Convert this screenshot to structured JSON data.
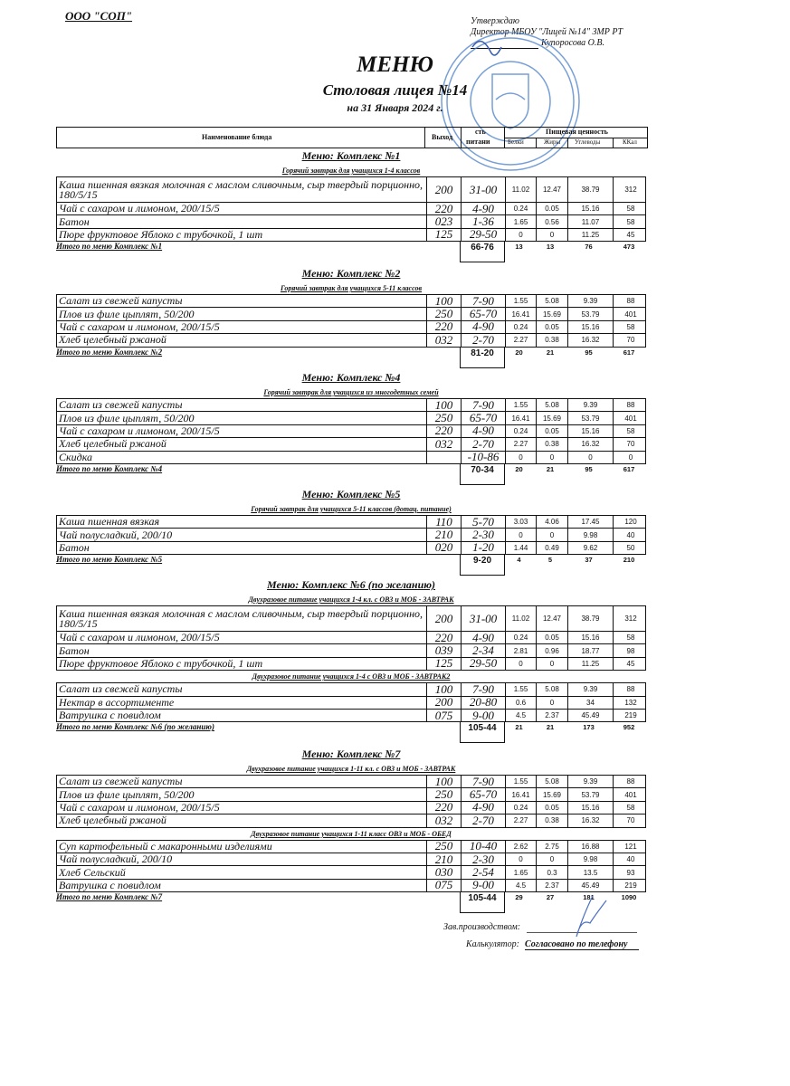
{
  "organization": "ООО \"СОП\"",
  "approval": {
    "line1": "Утверждаю",
    "line2": "Директор МБОУ \"Лицей №14\" ЗМР РТ",
    "line3": "Купоросова О.В."
  },
  "title": "МЕНЮ",
  "subtitle": "Столовая лицея №14",
  "date": "на 31 Января 2024 г.",
  "stamp_color": "#4a7fc8",
  "table_header": {
    "name": "Наименование блюда",
    "weight": "Выход",
    "price_top": "сть",
    "price_bottom": "питани",
    "nutrition": "Пищевая ценность",
    "protein": "Белки",
    "fat": "Жиры",
    "carbs": "Углеводы",
    "kcal": "ККал"
  },
  "sections": [
    {
      "title": "Меню: Комплекс №1",
      "groups": [
        {
          "title": "Горячий завтрак для учащихся 1-4 классов",
          "rows": [
            {
              "name": "Каша пшенная вязкая молочная с маслом сливочным, сыр твердый порционно, 180/5/15",
              "weight": "200",
              "price": "31-00",
              "protein": "11.02",
              "fat": "12.47",
              "carbs": "38.79",
              "kcal": "312"
            },
            {
              "name": "Чай с сахаром и лимоном, 200/15/5",
              "weight": "220",
              "price": "4-90",
              "protein": "0.24",
              "fat": "0.05",
              "carbs": "15.16",
              "kcal": "58"
            },
            {
              "name": "Батон",
              "weight": "023",
              "price": "1-36",
              "protein": "1.65",
              "fat": "0.56",
              "carbs": "11.07",
              "kcal": "58"
            },
            {
              "name": "Пюре фруктовое Яблоко с трубочкой, 1 шт",
              "weight": "125",
              "price": "29-50",
              "protein": "0",
              "fat": "0",
              "carbs": "11.25",
              "kcal": "45"
            }
          ]
        }
      ],
      "total": {
        "label": "Итого по меню Комплекс №1",
        "price": "66-76",
        "protein": "13",
        "fat": "13",
        "carbs": "76",
        "kcal": "473"
      }
    },
    {
      "title": "Меню: Комплекс №2",
      "groups": [
        {
          "title": "Горячий завтрак для учащихся 5-11 классов",
          "rows": [
            {
              "name": "Салат из свежей капусты",
              "weight": "100",
              "price": "7-90",
              "protein": "1.55",
              "fat": "5.08",
              "carbs": "9.39",
              "kcal": "88"
            },
            {
              "name": "Плов из филе цыплят, 50/200",
              "weight": "250",
              "price": "65-70",
              "protein": "16.41",
              "fat": "15.69",
              "carbs": "53.79",
              "kcal": "401"
            },
            {
              "name": "Чай с сахаром и лимоном, 200/15/5",
              "weight": "220",
              "price": "4-90",
              "protein": "0.24",
              "fat": "0.05",
              "carbs": "15.16",
              "kcal": "58"
            },
            {
              "name": "Хлеб  целебный ржаной",
              "weight": "032",
              "price": "2-70",
              "protein": "2.27",
              "fat": "0.38",
              "carbs": "16.32",
              "kcal": "70"
            }
          ]
        }
      ],
      "total": {
        "label": "Итого по меню Комплекс №2",
        "price": "81-20",
        "protein": "20",
        "fat": "21",
        "carbs": "95",
        "kcal": "617"
      }
    },
    {
      "title": "Меню: Комплекс №4",
      "groups": [
        {
          "title": "Горячий завтрак для учащихся из многодетных семей",
          "rows": [
            {
              "name": "Салат из свежей капусты",
              "weight": "100",
              "price": "7-90",
              "protein": "1.55",
              "fat": "5.08",
              "carbs": "9.39",
              "kcal": "88"
            },
            {
              "name": "Плов из филе цыплят, 50/200",
              "weight": "250",
              "price": "65-70",
              "protein": "16.41",
              "fat": "15.69",
              "carbs": "53.79",
              "kcal": "401"
            },
            {
              "name": "Чай с сахаром и лимоном, 200/15/5",
              "weight": "220",
              "price": "4-90",
              "protein": "0.24",
              "fat": "0.05",
              "carbs": "15.16",
              "kcal": "58"
            },
            {
              "name": "Хлеб  целебный ржаной",
              "weight": "032",
              "price": "2-70",
              "protein": "2.27",
              "fat": "0.38",
              "carbs": "16.32",
              "kcal": "70"
            },
            {
              "name": "Скидка",
              "weight": "",
              "price": "-10-86",
              "protein": "0",
              "fat": "0",
              "carbs": "0",
              "kcal": "0"
            }
          ]
        }
      ],
      "total": {
        "label": "Итого по меню Комплекс №4",
        "price": "70-34",
        "protein": "20",
        "fat": "21",
        "carbs": "95",
        "kcal": "617"
      }
    },
    {
      "title": "Меню: Комплекс №5",
      "groups": [
        {
          "title": "Горячий завтрак для учащихся 5-11 классов (дотац. питание)",
          "rows": [
            {
              "name": "Каша пшенная вязкая",
              "weight": "110",
              "price": "5-70",
              "protein": "3.03",
              "fat": "4.06",
              "carbs": "17.45",
              "kcal": "120"
            },
            {
              "name": "Чай полусладкий, 200/10",
              "weight": "210",
              "price": "2-30",
              "protein": "0",
              "fat": "0",
              "carbs": "9.98",
              "kcal": "40"
            },
            {
              "name": "Батон",
              "weight": "020",
              "price": "1-20",
              "protein": "1.44",
              "fat": "0.49",
              "carbs": "9.62",
              "kcal": "50"
            }
          ]
        }
      ],
      "total": {
        "label": "Итого по меню Комплекс №5",
        "price": "9-20",
        "protein": "4",
        "fat": "5",
        "carbs": "37",
        "kcal": "210"
      }
    },
    {
      "title": "Меню: Комплекс №6 (по желанию)",
      "groups": [
        {
          "title": "Двухразовое питание учащихся 1-4 кл. с ОВЗ и МОБ - ЗАВТРАК",
          "rows": [
            {
              "name": "Каша пшенная вязкая молочная с маслом сливочным, сыр твердый порционно, 180/5/15",
              "weight": "200",
              "price": "31-00",
              "protein": "11.02",
              "fat": "12.47",
              "carbs": "38.79",
              "kcal": "312"
            },
            {
              "name": "Чай с сахаром и лимоном, 200/15/5",
              "weight": "220",
              "price": "4-90",
              "protein": "0.24",
              "fat": "0.05",
              "carbs": "15.16",
              "kcal": "58"
            },
            {
              "name": "Батон",
              "weight": "039",
              "price": "2-34",
              "protein": "2.81",
              "fat": "0.96",
              "carbs": "18.77",
              "kcal": "98"
            },
            {
              "name": "Пюре фруктовое Яблоко с трубочкой, 1 шт",
              "weight": "125",
              "price": "29-50",
              "protein": "0",
              "fat": "0",
              "carbs": "11.25",
              "kcal": "45"
            }
          ]
        },
        {
          "title": "Двухразовое питание учащихся 1-4 с ОВЗ и МОБ - ЗАВТРАК2",
          "rows": [
            {
              "name": "Салат из свежей капусты",
              "weight": "100",
              "price": "7-90",
              "protein": "1.55",
              "fat": "5.08",
              "carbs": "9.39",
              "kcal": "88"
            },
            {
              "name": "Нектар в ассортименте",
              "weight": "200",
              "price": "20-80",
              "protein": "0.6",
              "fat": "0",
              "carbs": "34",
              "kcal": "132"
            },
            {
              "name": "Ватрушка с повидлом",
              "weight": "075",
              "price": "9-00",
              "protein": "4.5",
              "fat": "2.37",
              "carbs": "45.49",
              "kcal": "219"
            }
          ]
        }
      ],
      "total": {
        "label": "Итого по меню Комплекс №6 (по желанию)",
        "price": "105-44",
        "protein": "21",
        "fat": "21",
        "carbs": "173",
        "kcal": "952"
      }
    },
    {
      "title": "Меню: Комплекс №7",
      "groups": [
        {
          "title": "Двухразовое питание учащихся 1-11 кл. с  ОВЗ и МОБ - ЗАВТРАК",
          "rows": [
            {
              "name": "Салат из свежей капусты",
              "weight": "100",
              "price": "7-90",
              "protein": "1.55",
              "fat": "5.08",
              "carbs": "9.39",
              "kcal": "88"
            },
            {
              "name": "Плов из филе цыплят, 50/200",
              "weight": "250",
              "price": "65-70",
              "protein": "16.41",
              "fat": "15.69",
              "carbs": "53.79",
              "kcal": "401"
            },
            {
              "name": "Чай с сахаром и лимоном, 200/15/5",
              "weight": "220",
              "price": "4-90",
              "protein": "0.24",
              "fat": "0.05",
              "carbs": "15.16",
              "kcal": "58"
            },
            {
              "name": "Хлеб  целебный ржаной",
              "weight": "032",
              "price": "2-70",
              "protein": "2.27",
              "fat": "0.38",
              "carbs": "16.32",
              "kcal": "70"
            }
          ]
        },
        {
          "title": "Двухразовое питание учащихся 1-11 класс ОВЗ и МОБ - ОБЕД",
          "rows": [
            {
              "name": "Суп картофельный с макаронными изделиями",
              "weight": "250",
              "price": "10-40",
              "protein": "2.62",
              "fat": "2.75",
              "carbs": "16.88",
              "kcal": "121"
            },
            {
              "name": "Чай полусладкий, 200/10",
              "weight": "210",
              "price": "2-30",
              "protein": "0",
              "fat": "0",
              "carbs": "9.98",
              "kcal": "40"
            },
            {
              "name": "Хлеб Сельский",
              "weight": "030",
              "price": "2-54",
              "protein": "1.65",
              "fat": "0.3",
              "carbs": "13.5",
              "kcal": "93"
            },
            {
              "name": "Ватрушка с повидлом",
              "weight": "075",
              "price": "9-00",
              "protein": "4.5",
              "fat": "2.37",
              "carbs": "45.49",
              "kcal": "219"
            }
          ]
        }
      ],
      "total": {
        "label": "Итого по меню Комплекс №7",
        "price": "105-44",
        "protein": "29",
        "fat": "27",
        "carbs": "181",
        "kcal": "1090"
      }
    }
  ],
  "footer": {
    "production_label": "Зав.производством:",
    "calculator_label": "Калькулятор:",
    "calculator_value": "Согласовано по телефону"
  }
}
